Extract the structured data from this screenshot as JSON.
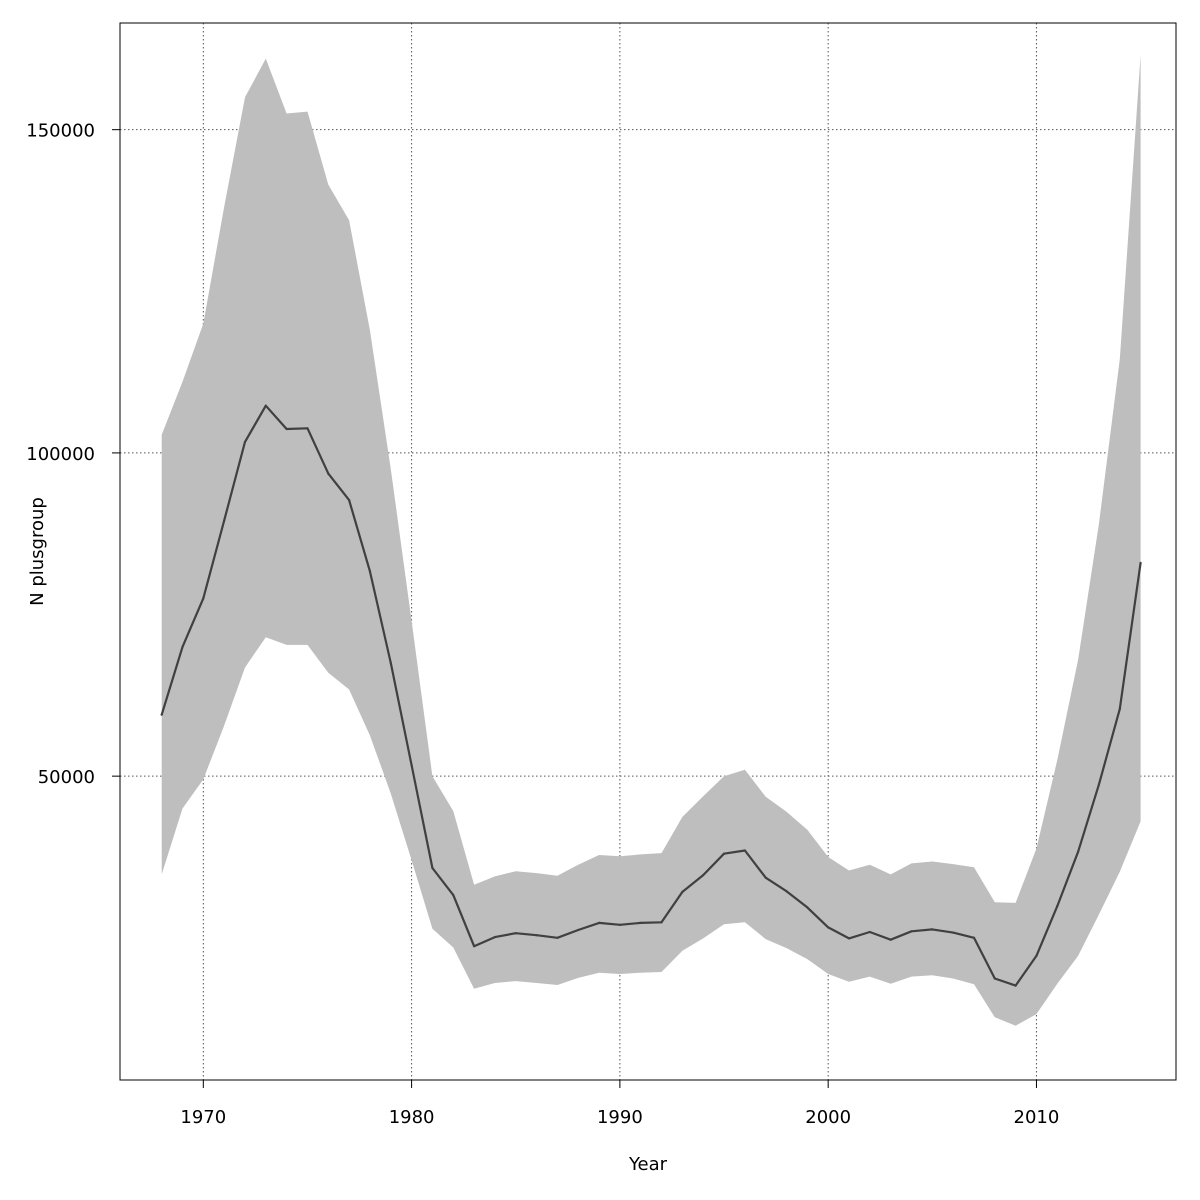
{
  "chart_data": {
    "type": "line",
    "title": "",
    "xlabel": "Year",
    "ylabel": "N plusgroup",
    "xlim": [
      1966,
      2016.7
    ],
    "ylim": [
      3000,
      166500
    ],
    "grid": true,
    "x_ticks": [
      1970,
      1980,
      1990,
      2000,
      2010
    ],
    "y_ticks": [
      50000,
      100000,
      150000
    ],
    "colors": {
      "band": "#bebebe",
      "line": "#404040",
      "grid": "#555555",
      "frame": "#000000"
    },
    "x": [
      1968,
      1969,
      1970,
      1971,
      1972,
      1973,
      1974,
      1975,
      1976,
      1977,
      1978,
      1979,
      1980,
      1981,
      1982,
      1983,
      1984,
      1985,
      1986,
      1987,
      1988,
      1989,
      1990,
      1991,
      1992,
      1993,
      1994,
      1995,
      1996,
      1997,
      1998,
      1999,
      2000,
      2001,
      2002,
      2003,
      2004,
      2005,
      2006,
      2007,
      2008,
      2009,
      2010,
      2011,
      2012,
      2013,
      2014,
      2015
    ],
    "series": [
      {
        "role": "estimate",
        "values": [
          59500,
          70000,
          77500,
          89500,
          101700,
          107300,
          103700,
          103800,
          96800,
          92700,
          81700,
          67500,
          51700,
          35800,
          31600,
          23700,
          25100,
          25700,
          25400,
          25000,
          26200,
          27300,
          27000,
          27300,
          27400,
          32100,
          34700,
          38000,
          38500,
          34300,
          32200,
          29700,
          26600,
          24900,
          25900,
          24700,
          26000,
          26300,
          25800,
          25000,
          18700,
          17600,
          22200,
          29900,
          38300,
          48700,
          60400,
          83000
        ]
      },
      {
        "role": "upper",
        "values": [
          102800,
          111000,
          120000,
          138000,
          155000,
          161000,
          152500,
          152800,
          141500,
          136000,
          119000,
          97500,
          74000,
          50000,
          44600,
          33200,
          34500,
          35300,
          35000,
          34600,
          36300,
          37800,
          37600,
          37900,
          38100,
          43700,
          46900,
          50000,
          51000,
          46800,
          44500,
          41700,
          37500,
          35400,
          36300,
          34800,
          36500,
          36800,
          36400,
          35900,
          30500,
          30400,
          38800,
          52500,
          68000,
          89000,
          114500,
          161500
        ]
      },
      {
        "role": "lower",
        "values": [
          34800,
          45000,
          49500,
          57800,
          66800,
          71500,
          70300,
          70300,
          66000,
          63400,
          56300,
          47300,
          37000,
          26400,
          23500,
          17100,
          18000,
          18300,
          18000,
          17700,
          18800,
          19600,
          19400,
          19600,
          19700,
          23000,
          24900,
          27100,
          27400,
          24800,
          23400,
          21700,
          19400,
          18200,
          19000,
          17900,
          19000,
          19200,
          18700,
          17800,
          12700,
          11400,
          13200,
          17900,
          22200,
          28600,
          35200,
          43000
        ]
      }
    ]
  }
}
